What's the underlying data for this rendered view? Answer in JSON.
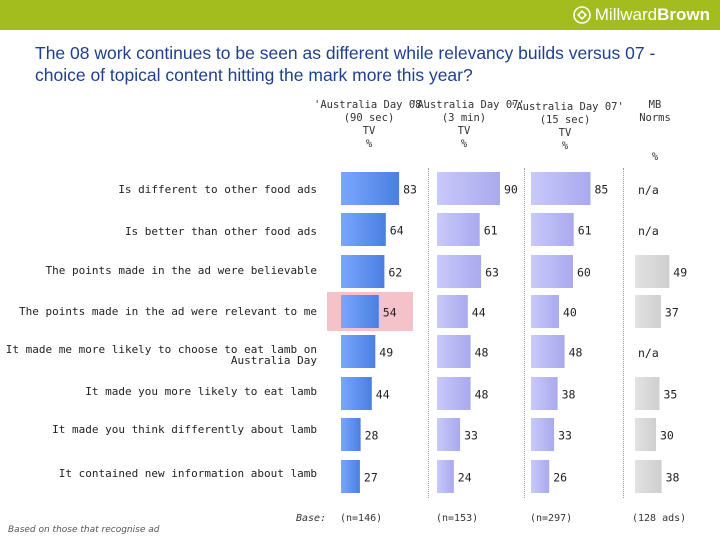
{
  "brand": {
    "name_light": "Millward",
    "name_bold": "Brown",
    "bar_color": "#a3bc1e"
  },
  "title": "The 08 work continues to be seen as different while relevancy builds versus 07 - choice of topical content hitting the mark more this year?",
  "chart_data": {
    "type": "bar",
    "orientation": "horizontal",
    "unit": "%",
    "columns": [
      {
        "header": "'Australia Day 08'\n(90 sec)\nTV\n%",
        "base": "(n=146)"
      },
      {
        "header": "'Australia Day 07'\n(3 min)\nTV\n%",
        "base": "(n=153)"
      },
      {
        "header": "'Australia Day 07'\n(15 sec)\nTV\n%",
        "base": "(n=297)"
      },
      {
        "header": "MB\nNorms\n\n\n%",
        "base": "(128 ads)"
      }
    ],
    "categories": [
      "Is different to other food ads",
      "Is better than other food ads",
      "The points made in the ad were believable",
      "The points made in the ad were relevant to me",
      "It made me more likely to choose to eat lamb on\nAustralia Day",
      "It made you more likely to eat lamb",
      "It made you think differently about lamb",
      "It contained new information about lamb"
    ],
    "series": [
      {
        "name": "Australia Day 08 (90 sec) TV",
        "values": [
          83,
          64,
          62,
          54,
          49,
          44,
          28,
          27
        ]
      },
      {
        "name": "Australia Day 07 (3 min) TV",
        "values": [
          90,
          61,
          63,
          44,
          48,
          48,
          33,
          24
        ]
      },
      {
        "name": "Australia Day 07 (15 sec) TV",
        "values": [
          85,
          61,
          60,
          40,
          48,
          38,
          33,
          26
        ]
      },
      {
        "name": "MB Norms",
        "values": [
          null,
          null,
          49,
          37,
          null,
          35,
          30,
          38
        ]
      }
    ],
    "na_label": "n/a",
    "highlight": {
      "series": 0,
      "category": 3,
      "color": "#f4c2c8"
    },
    "colors": {
      "series_1": "#4a7fe0",
      "series_2_3": "#a9a9ee",
      "norms": "#cfcfcf"
    },
    "xlim": [
      0,
      100
    ],
    "base_label": "Base:"
  },
  "footnote": "Based on those that recognise ad"
}
